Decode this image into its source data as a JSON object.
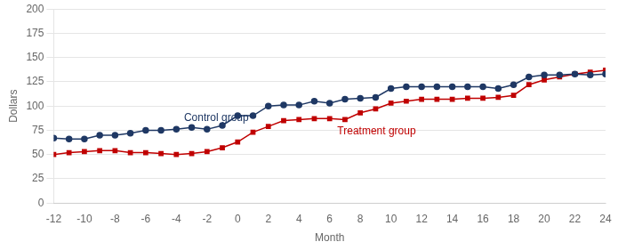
{
  "chart_data": {
    "type": "line",
    "x": [
      -12,
      -11,
      -10,
      -9,
      -8,
      -7,
      -6,
      -5,
      -4,
      -3,
      -2,
      -1,
      0,
      1,
      2,
      3,
      4,
      5,
      6,
      7,
      8,
      9,
      10,
      11,
      12,
      13,
      14,
      15,
      16,
      17,
      18,
      19,
      20,
      21,
      22,
      23,
      24
    ],
    "series": [
      {
        "name": "Control group",
        "color": "#1f3864",
        "marker": "circle",
        "values": [
          67,
          66,
          66,
          70,
          70,
          72,
          75,
          75,
          76,
          78,
          76,
          80,
          90,
          90,
          100,
          101,
          101,
          105,
          103,
          107,
          108,
          109,
          118,
          120,
          120,
          120,
          120,
          120,
          120,
          118,
          122,
          130,
          132,
          132,
          133,
          132,
          133
        ]
      },
      {
        "name": "Treatment group",
        "color": "#c00000",
        "marker": "square",
        "values": [
          50,
          52,
          53,
          54,
          54,
          52,
          52,
          51,
          50,
          51,
          53,
          57,
          63,
          73,
          79,
          85,
          86,
          87,
          87,
          86,
          93,
          97,
          103,
          105,
          107,
          107,
          107,
          108,
          108,
          109,
          111,
          122,
          127,
          130,
          133,
          135,
          137
        ]
      }
    ],
    "annotations": [
      {
        "text": "Control group",
        "x": -3.5,
        "y": 82,
        "color": "#1f3864"
      },
      {
        "text": "Treatment group",
        "x": 6.5,
        "y": 68,
        "color": "#c00000"
      }
    ],
    "xlabel": "Month",
    "ylabel": "Dollars",
    "xlim": [
      -12,
      24
    ],
    "ylim": [
      0,
      200
    ],
    "xticks": [
      -12,
      -10,
      -8,
      -6,
      -4,
      -2,
      0,
      2,
      4,
      6,
      8,
      10,
      12,
      14,
      16,
      18,
      20,
      22,
      24
    ],
    "yticks": [
      0,
      25,
      50,
      75,
      100,
      125,
      150,
      175,
      200
    ],
    "grid": "y"
  }
}
